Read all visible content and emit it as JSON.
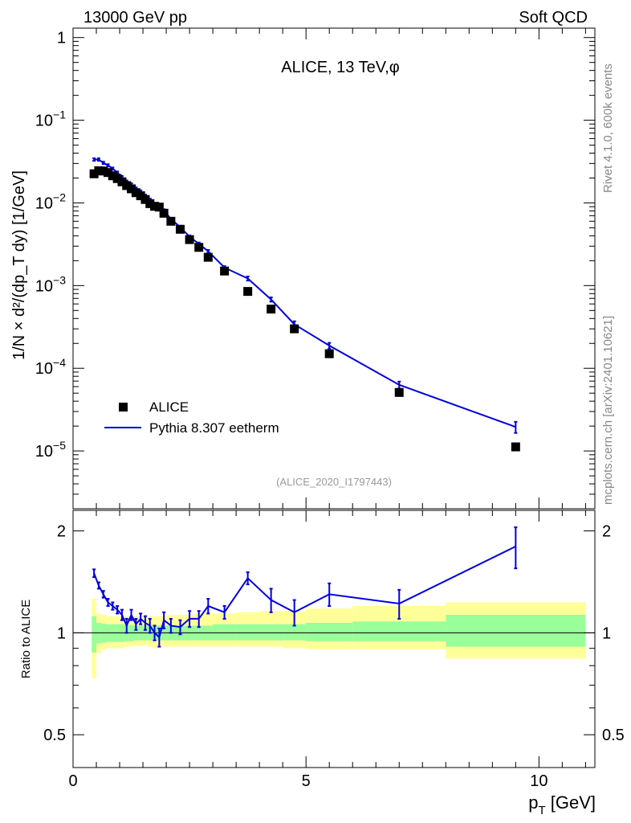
{
  "header": {
    "left": "13000 GeV pp",
    "right": "Soft QCD"
  },
  "side_labels": {
    "rivet": "Rivet 4.1.0,  600k events",
    "mcplots": "mcplots.cern.ch [arXiv:2401.10621]"
  },
  "chart_data": [
    {
      "type": "scatter",
      "panel": "main",
      "title": "ALICE, 13 TeV,φ",
      "analysis_id": "(ALICE_2020_I1797443)",
      "xlabel": "p_T [GeV]",
      "ylabel": "1/N × d²/(dp_T dy) [1/GeV]",
      "yscale": "log",
      "xlim": [
        0,
        11.2
      ],
      "ylim": [
        2e-06,
        1.3
      ],
      "y_ticks": [
        {
          "v": 1,
          "m": "1",
          "e": ""
        },
        {
          "v": 0.1,
          "m": "10",
          "e": "−1"
        },
        {
          "v": 0.01,
          "m": "10",
          "e": "−2"
        },
        {
          "v": 0.001,
          "m": "10",
          "e": "−3"
        },
        {
          "v": 0.0001,
          "m": "10",
          "e": "−4"
        },
        {
          "v": 1e-05,
          "m": "10",
          "e": "−5"
        }
      ],
      "legend": [
        {
          "label": "ALICE",
          "style": "black-square-marker"
        },
        {
          "label": "Pythia 8.307 eetherm",
          "style": "blue-line",
          "color": "#0000e0"
        }
      ],
      "series": [
        {
          "name": "ALICE",
          "color": "#000000",
          "x": [
            0.45,
            0.55,
            0.65,
            0.75,
            0.85,
            0.95,
            1.05,
            1.15,
            1.25,
            1.35,
            1.45,
            1.55,
            1.65,
            1.75,
            1.85,
            1.95,
            2.1,
            2.3,
            2.5,
            2.7,
            2.9,
            3.25,
            3.75,
            4.25,
            4.75,
            5.5,
            7.0,
            9.5
          ],
          "y": [
            0.0225,
            0.0245,
            0.0243,
            0.0233,
            0.0213,
            0.0197,
            0.018,
            0.0162,
            0.0148,
            0.0133,
            0.0122,
            0.011,
            0.0098,
            0.0091,
            0.0089,
            0.0075,
            0.006,
            0.0048,
            0.0036,
            0.0029,
            0.0022,
            0.0015,
            0.00085,
            0.00052,
            0.0003,
            0.00015,
            5.1e-05,
            1.12e-05
          ]
        },
        {
          "name": "Pythia 8.307 eetherm",
          "color": "#0000e0",
          "x": [
            0.45,
            0.55,
            0.65,
            0.75,
            0.85,
            0.95,
            1.05,
            1.15,
            1.25,
            1.35,
            1.45,
            1.55,
            1.65,
            1.75,
            1.85,
            1.95,
            2.1,
            2.3,
            2.5,
            2.7,
            2.9,
            3.25,
            3.75,
            4.25,
            4.75,
            5.5,
            7.0,
            9.5
          ],
          "y": [
            0.0335,
            0.0335,
            0.0305,
            0.0285,
            0.026,
            0.0233,
            0.0206,
            0.0182,
            0.0168,
            0.015,
            0.0138,
            0.0122,
            0.011,
            0.0097,
            0.0088,
            0.0081,
            0.0064,
            0.0051,
            0.0039,
            0.0032,
            0.0026,
            0.00165,
            0.00122,
            0.00068,
            0.00034,
            0.000188,
            6.3e-05,
            1.95e-05
          ],
          "yerr": [
            0.0012,
            0.0012,
            0.001,
            0.0009,
            0.0008,
            0.0007,
            0.0006,
            0.0005,
            0.0005,
            0.0004,
            0.0004,
            0.0004,
            0.0003,
            0.0003,
            0.0003,
            0.0003,
            0.0002,
            0.0002,
            0.00015,
            0.00012,
            0.0001,
            7e-05,
            7e-05,
            4e-05,
            3e-05,
            1.5e-05,
            6e-06,
            3e-06
          ]
        }
      ]
    },
    {
      "type": "line",
      "panel": "ratio",
      "ylabel": "Ratio to ALICE",
      "xlabel": "p_T [GeV]",
      "xlim": [
        0,
        11.2
      ],
      "ylim": [
        0.4,
        2.3
      ],
      "y_ticks": [
        0.5,
        1,
        2
      ],
      "x_ticks": [
        0,
        5,
        10
      ],
      "reference_line": 1,
      "bands": [
        {
          "name": "ALICE total uncertainty",
          "color": "#ffff99",
          "x0": [
            0.4,
            0.5,
            0.6,
            0.7,
            0.8,
            0.9,
            1.0,
            1.1,
            1.2,
            1.3,
            1.4,
            1.5,
            1.6,
            1.7,
            1.8,
            1.9,
            2.0,
            2.2,
            2.4,
            2.6,
            2.8,
            3.0,
            3.5,
            4.0,
            4.5,
            5.0,
            6.0,
            8.0
          ],
          "x1": [
            0.5,
            0.6,
            0.7,
            0.8,
            0.9,
            1.0,
            1.1,
            1.2,
            1.3,
            1.4,
            1.5,
            1.6,
            1.7,
            1.8,
            1.9,
            2.0,
            2.2,
            2.4,
            2.6,
            2.8,
            3.0,
            3.5,
            4.0,
            4.5,
            5.0,
            6.0,
            8.0,
            11.0
          ],
          "lo": [
            0.735,
            0.87,
            0.89,
            0.9,
            0.9,
            0.9,
            0.9,
            0.91,
            0.91,
            0.915,
            0.915,
            0.92,
            0.91,
            0.9,
            0.91,
            0.91,
            0.91,
            0.91,
            0.91,
            0.91,
            0.91,
            0.91,
            0.91,
            0.91,
            0.9,
            0.895,
            0.895,
            0.84
          ],
          "hi": [
            1.26,
            1.14,
            1.13,
            1.12,
            1.12,
            1.12,
            1.12,
            1.12,
            1.12,
            1.12,
            1.12,
            1.12,
            1.12,
            1.12,
            1.12,
            1.12,
            1.13,
            1.13,
            1.13,
            1.14,
            1.14,
            1.14,
            1.15,
            1.16,
            1.16,
            1.18,
            1.2,
            1.23
          ]
        },
        {
          "name": "ALICE stat uncertainty",
          "color": "#99ff99",
          "x0": [
            0.4,
            0.5,
            0.6,
            0.7,
            0.8,
            0.9,
            1.0,
            1.1,
            1.2,
            1.3,
            1.4,
            1.5,
            1.6,
            1.7,
            1.8,
            1.9,
            2.0,
            2.2,
            2.4,
            2.6,
            2.8,
            3.0,
            3.5,
            4.0,
            4.5,
            5.0,
            6.0,
            8.0
          ],
          "x1": [
            0.5,
            0.6,
            0.7,
            0.8,
            0.9,
            1.0,
            1.1,
            1.2,
            1.3,
            1.4,
            1.5,
            1.6,
            1.7,
            1.8,
            1.9,
            2.0,
            2.2,
            2.4,
            2.6,
            2.8,
            3.0,
            3.5,
            4.0,
            4.5,
            5.0,
            6.0,
            8.0,
            11.0
          ],
          "lo": [
            0.875,
            0.93,
            0.935,
            0.94,
            0.94,
            0.94,
            0.94,
            0.945,
            0.945,
            0.95,
            0.95,
            0.95,
            0.95,
            0.95,
            0.95,
            0.95,
            0.95,
            0.95,
            0.95,
            0.95,
            0.95,
            0.95,
            0.95,
            0.95,
            0.95,
            0.945,
            0.945,
            0.91
          ],
          "hi": [
            1.12,
            1.07,
            1.065,
            1.06,
            1.06,
            1.06,
            1.06,
            1.055,
            1.055,
            1.05,
            1.05,
            1.05,
            1.05,
            1.05,
            1.05,
            1.05,
            1.05,
            1.05,
            1.05,
            1.05,
            1.05,
            1.06,
            1.06,
            1.06,
            1.06,
            1.07,
            1.08,
            1.13
          ]
        }
      ],
      "series": [
        {
          "name": "Pythia 8.307 eetherm / ALICE",
          "color": "#0000e0",
          "x": [
            0.45,
            0.55,
            0.65,
            0.75,
            0.85,
            0.95,
            1.05,
            1.15,
            1.25,
            1.35,
            1.45,
            1.55,
            1.65,
            1.75,
            1.85,
            1.95,
            2.1,
            2.3,
            2.5,
            2.7,
            2.9,
            3.25,
            3.75,
            4.25,
            4.75,
            5.5,
            7.0,
            9.5
          ],
          "y": [
            1.5,
            1.38,
            1.3,
            1.23,
            1.2,
            1.17,
            1.13,
            1.05,
            1.13,
            1.06,
            1.1,
            1.07,
            1.05,
            1.0,
            0.97,
            1.09,
            1.05,
            1.04,
            1.1,
            1.1,
            1.2,
            1.15,
            1.45,
            1.25,
            1.15,
            1.3,
            1.22,
            1.8
          ],
          "yerr": [
            0.04,
            0.03,
            0.03,
            0.03,
            0.03,
            0.03,
            0.04,
            0.05,
            0.04,
            0.04,
            0.04,
            0.05,
            0.05,
            0.05,
            0.06,
            0.06,
            0.05,
            0.05,
            0.06,
            0.06,
            0.06,
            0.05,
            0.06,
            0.1,
            0.1,
            0.1,
            0.12,
            0.25
          ]
        }
      ]
    }
  ]
}
